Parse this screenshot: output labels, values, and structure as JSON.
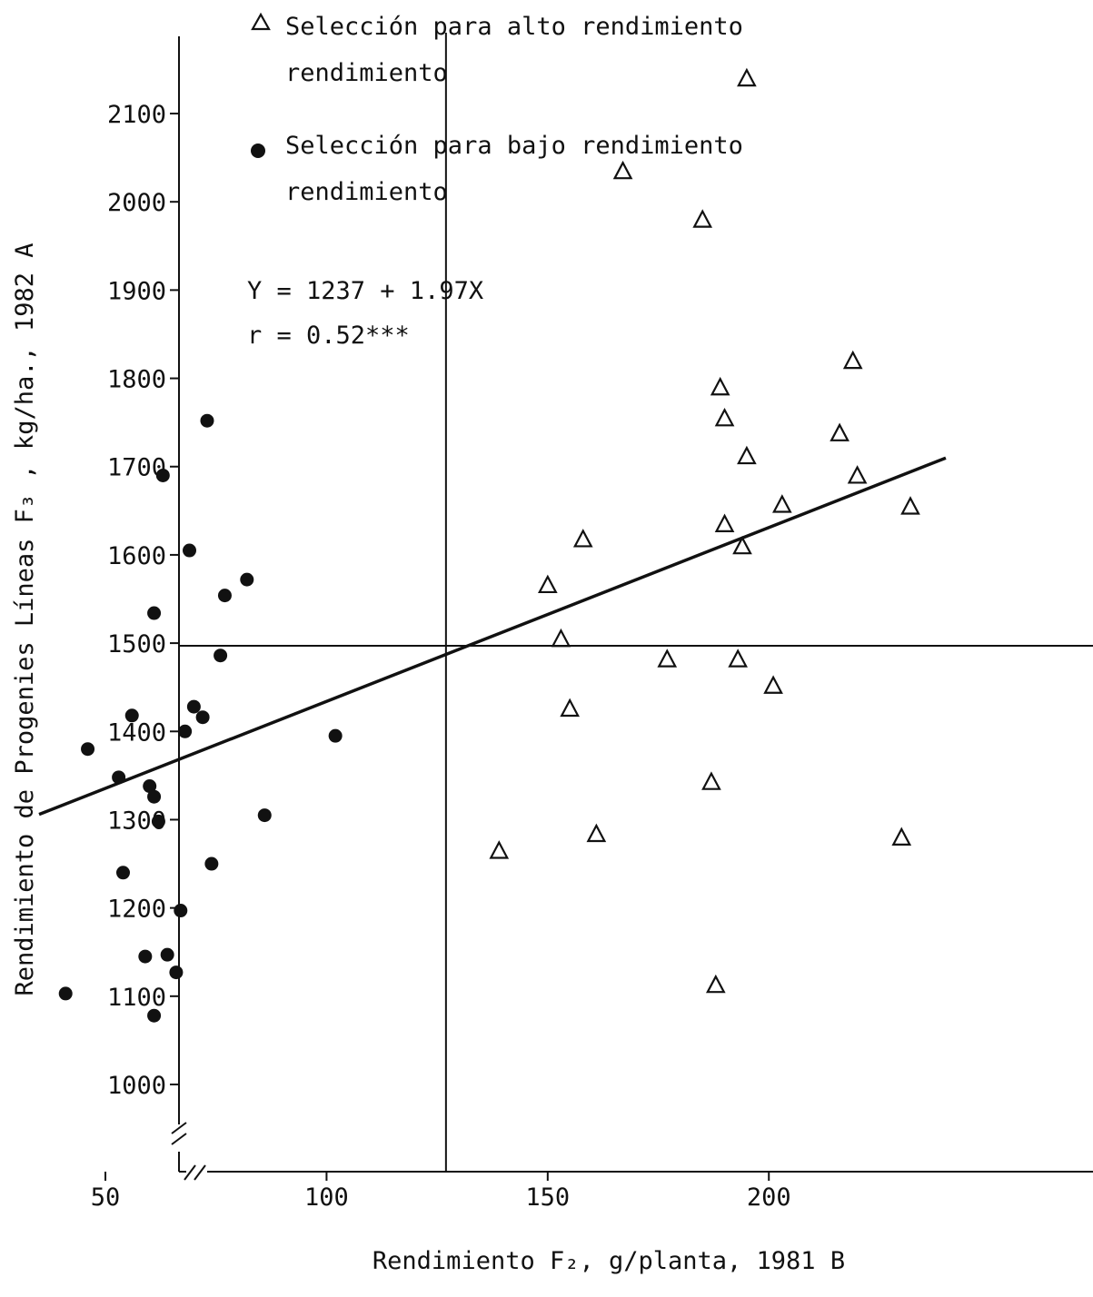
{
  "chart_data": {
    "type": "scatter",
    "xlabel": "Rendimiento F₂, g/planta, 1981 B",
    "ylabel": "Rendimiento de Progenies Líneas F₃  , kg/ha., 1982 A",
    "xlim": [
      30,
      240
    ],
    "ylim": [
      900,
      2180
    ],
    "x_ticks": [
      "50",
      "100",
      "150",
      "200"
    ],
    "x_tick_values": [
      50,
      100,
      150,
      200
    ],
    "y_ticks": [
      "1000",
      "1100",
      "1200",
      "1300",
      "1400",
      "1500",
      "1600",
      "1700",
      "1800",
      "1900",
      "2000",
      "2100"
    ],
    "y_tick_values": [
      1000,
      1100,
      1200,
      1300,
      1400,
      1500,
      1600,
      1700,
      1800,
      1900,
      2000,
      2100
    ],
    "axis_break": true,
    "reference_lines": {
      "x_mean": 127,
      "y_mean": 1497
    },
    "regression": {
      "equation": "Y = 1237 + 1.97X",
      "r_label": "r = 0.52***",
      "x_range": [
        35,
        240
      ]
    },
    "series": [
      {
        "name": "Selección para alto rendimiento",
        "legend_line2": "rendimiento",
        "marker": "triangle",
        "points": [
          [
            195,
            2140
          ],
          [
            167,
            2035
          ],
          [
            185,
            1980
          ],
          [
            219,
            1820
          ],
          [
            189,
            1790
          ],
          [
            190,
            1755
          ],
          [
            216,
            1738
          ],
          [
            195,
            1712
          ],
          [
            220,
            1690
          ],
          [
            232,
            1655
          ],
          [
            203,
            1657
          ],
          [
            190,
            1635
          ],
          [
            158,
            1618
          ],
          [
            194,
            1610
          ],
          [
            150,
            1566
          ],
          [
            153,
            1505
          ],
          [
            177,
            1482
          ],
          [
            193,
            1482
          ],
          [
            201,
            1452
          ],
          [
            155,
            1426
          ],
          [
            187,
            1343
          ],
          [
            161,
            1284
          ],
          [
            230,
            1280
          ],
          [
            139,
            1265
          ],
          [
            188,
            1113
          ]
        ]
      },
      {
        "name": "Selección para bajo rendimiento",
        "legend_line2": "rendimiento",
        "marker": "dot",
        "points": [
          [
            73,
            1752
          ],
          [
            63,
            1690
          ],
          [
            69,
            1605
          ],
          [
            82,
            1572
          ],
          [
            77,
            1554
          ],
          [
            61,
            1534
          ],
          [
            76,
            1486
          ],
          [
            70,
            1428
          ],
          [
            56,
            1418
          ],
          [
            72,
            1416
          ],
          [
            68,
            1400
          ],
          [
            102,
            1395
          ],
          [
            46,
            1380
          ],
          [
            53,
            1348
          ],
          [
            60,
            1338
          ],
          [
            61,
            1326
          ],
          [
            62,
            1298
          ],
          [
            86,
            1305
          ],
          [
            74,
            1250
          ],
          [
            54,
            1240
          ],
          [
            67,
            1197
          ],
          [
            59,
            1145
          ],
          [
            64,
            1147
          ],
          [
            66,
            1127
          ],
          [
            41,
            1103
          ],
          [
            61,
            1078
          ]
        ]
      }
    ]
  }
}
